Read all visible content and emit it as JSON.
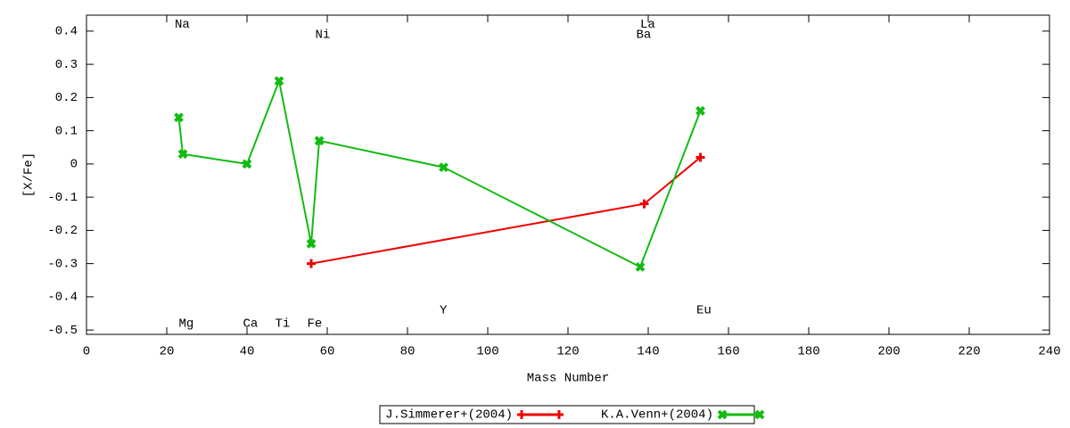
{
  "chart_data": {
    "type": "line",
    "xlabel": "Mass Number",
    "ylabel": "[X/Fe]",
    "xlim": [
      0,
      240
    ],
    "ylim": [
      -0.513,
      0.448
    ],
    "xticks": [
      0,
      20,
      40,
      60,
      80,
      100,
      120,
      140,
      160,
      180,
      200,
      220,
      240
    ],
    "yticks": [
      -0.5,
      -0.4,
      -0.3,
      -0.2,
      -0.1,
      0,
      0.1,
      0.2,
      0.3,
      0.4
    ],
    "legend": "bottom",
    "series": [
      {
        "name": "J.Simmerer+(2004)",
        "color": "#ee0000",
        "marker": "plus",
        "x": [
          56,
          139,
          153
        ],
        "values": [
          -0.3,
          -0.12,
          0.02
        ]
      },
      {
        "name": "K.A.Venn+(2004)",
        "color": "#11bb11",
        "marker": "cross",
        "x": [
          23,
          24,
          40,
          48,
          56,
          58,
          89,
          138,
          153
        ],
        "values": [
          0.14,
          0.03,
          0,
          0.25,
          -0.24,
          0.07,
          -0.01,
          -0.31,
          0.16
        ]
      }
    ],
    "annotations": [
      {
        "text": "Na",
        "x": 22,
        "y": 0.42
      },
      {
        "text": "Mg",
        "x": 23,
        "y": -0.48
      },
      {
        "text": "Ca",
        "x": 39,
        "y": -0.48
      },
      {
        "text": "Ti",
        "x": 47,
        "y": -0.48
      },
      {
        "text": "Fe",
        "x": 55,
        "y": -0.48
      },
      {
        "text": "Ni",
        "x": 57,
        "y": 0.39
      },
      {
        "text": "Y",
        "x": 88,
        "y": -0.44
      },
      {
        "text": "Ba",
        "x": 137,
        "y": 0.39
      },
      {
        "text": "La",
        "x": 138,
        "y": 0.42
      },
      {
        "text": "Eu",
        "x": 152,
        "y": -0.44
      }
    ]
  }
}
